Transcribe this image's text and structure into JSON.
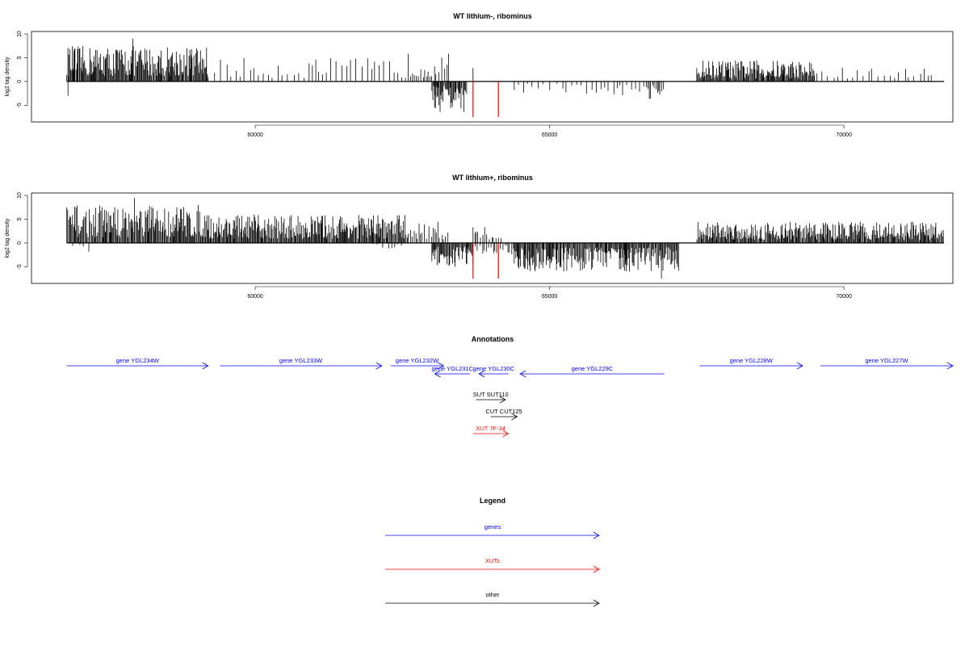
{
  "chart_data": [
    {
      "type": "bar",
      "title": "WT lithium-, ribominus",
      "ylabel": "log2 tag density",
      "xlim": [
        56200,
        71850
      ],
      "ylim": [
        -8,
        10
      ],
      "y_ticks": [
        10,
        5,
        0,
        -5
      ],
      "x_ticks": [
        60000,
        65000,
        70000
      ],
      "x_tick_labels": [
        "60000",
        "65000",
        "70000"
      ],
      "y_tick_labels": [
        "10",
        "5",
        "0",
        "-5"
      ],
      "highlight_positions": [
        63700,
        64130
      ],
      "highlight_color": "#ff0000",
      "highlight_value": -7.5,
      "positive_segments": [
        {
          "start": 56800,
          "end": 59200,
          "max": 7.5,
          "density": "dense"
        },
        {
          "start": 59200,
          "end": 62600,
          "max": 5,
          "density": "sparse"
        },
        {
          "start": 62600,
          "end": 63300,
          "max": 6,
          "density": "medium"
        },
        {
          "start": 63700,
          "end": 64200,
          "max": 3,
          "density": "rare"
        },
        {
          "start": 67500,
          "end": 69500,
          "max": 4.5,
          "density": "dense"
        },
        {
          "start": 69500,
          "end": 71500,
          "max": 3,
          "density": "sparse"
        }
      ],
      "negative_segments": [
        {
          "start": 63000,
          "end": 63600,
          "min": -6.5,
          "density": "dense"
        },
        {
          "start": 64400,
          "end": 66600,
          "min": -3,
          "density": "sparse"
        },
        {
          "start": 66600,
          "end": 66950,
          "min": -4,
          "density": "medium"
        }
      ],
      "outliers": [
        {
          "x": 56820,
          "y": -3
        },
        {
          "x": 57920,
          "y": 9
        }
      ]
    },
    {
      "type": "bar",
      "title": "WT lithium+, ribominus",
      "ylabel": "log2 tag density",
      "xlim": [
        56200,
        71850
      ],
      "ylim": [
        -8,
        10
      ],
      "y_ticks": [
        10,
        5,
        0,
        -5
      ],
      "x_ticks": [
        60000,
        65000,
        70000
      ],
      "x_tick_labels": [
        "60000",
        "65000",
        "70000"
      ],
      "y_tick_labels": [
        "10",
        "5",
        "0",
        "-5"
      ],
      "highlight_positions": [
        63700,
        64130
      ],
      "highlight_color": "#ff0000",
      "highlight_value": -7.5,
      "positive_segments": [
        {
          "start": 56800,
          "end": 59200,
          "max": 8,
          "density": "dense"
        },
        {
          "start": 59200,
          "end": 62600,
          "max": 6,
          "density": "dense"
        },
        {
          "start": 62600,
          "end": 63300,
          "max": 5,
          "density": "medium"
        },
        {
          "start": 63700,
          "end": 64200,
          "max": 3.5,
          "density": "medium"
        },
        {
          "start": 67500,
          "end": 71700,
          "max": 4.5,
          "density": "dense"
        }
      ],
      "negative_segments": [
        {
          "start": 56900,
          "end": 57200,
          "min": -2,
          "density": "sparse"
        },
        {
          "start": 62000,
          "end": 62500,
          "min": -1.5,
          "density": "sparse"
        },
        {
          "start": 63000,
          "end": 63700,
          "min": -5,
          "density": "dense"
        },
        {
          "start": 63700,
          "end": 64400,
          "min": -3,
          "density": "medium"
        },
        {
          "start": 64400,
          "end": 67200,
          "min": -6,
          "density": "dense"
        }
      ],
      "outliers": [
        {
          "x": 57950,
          "y": 9.5
        },
        {
          "x": 66900,
          "y": -7.5
        }
      ]
    }
  ],
  "annotations": {
    "title": "Annotations",
    "items": [
      {
        "label": "gene YGL234W",
        "start": 56800,
        "end": 59200,
        "strand": "+",
        "row": 0,
        "color": "#0000ff"
      },
      {
        "label": "gene YGL233W",
        "start": 59400,
        "end": 62150,
        "strand": "+",
        "row": 0,
        "color": "#0000ff"
      },
      {
        "label": "gene YGL232W",
        "start": 62300,
        "end": 63200,
        "strand": "+",
        "row": 0,
        "color": "#0000ff"
      },
      {
        "label": "gene YGL231C",
        "start": 63050,
        "end": 63650,
        "strand": "-",
        "row": 1,
        "color": "#0000ff"
      },
      {
        "label": "gene YGL230C",
        "start": 63800,
        "end": 64300,
        "strand": "-",
        "row": 1,
        "color": "#0000ff"
      },
      {
        "label": "gene YGL229C",
        "start": 64500,
        "end": 66950,
        "strand": "-",
        "row": 1,
        "color": "#0000ff"
      },
      {
        "label": "gene YGL228W",
        "start": 67550,
        "end": 69300,
        "strand": "+",
        "row": 0,
        "color": "#0000ff"
      },
      {
        "label": "gene YGL227W",
        "start": 69600,
        "end": 71850,
        "strand": "+",
        "row": 0,
        "color": "#0000ff"
      },
      {
        "label": "SUT SUT110",
        "start": 63750,
        "end": 64250,
        "strand": "+",
        "row": 3,
        "color": "#000000"
      },
      {
        "label": "CUT CUT125",
        "start": 64000,
        "end": 64450,
        "strand": "+",
        "row": 4,
        "color": "#000000"
      },
      {
        "label": "XUT 7F-34",
        "start": 63700,
        "end": 64300,
        "strand": "+",
        "row": 5,
        "color": "#ff0000"
      }
    ]
  },
  "legend": {
    "title": "Legend",
    "items": [
      {
        "label": "genes",
        "color": "#0000ff"
      },
      {
        "label": "XUTs",
        "color": "#ff0000"
      },
      {
        "label": "other",
        "color": "#000000"
      }
    ]
  }
}
